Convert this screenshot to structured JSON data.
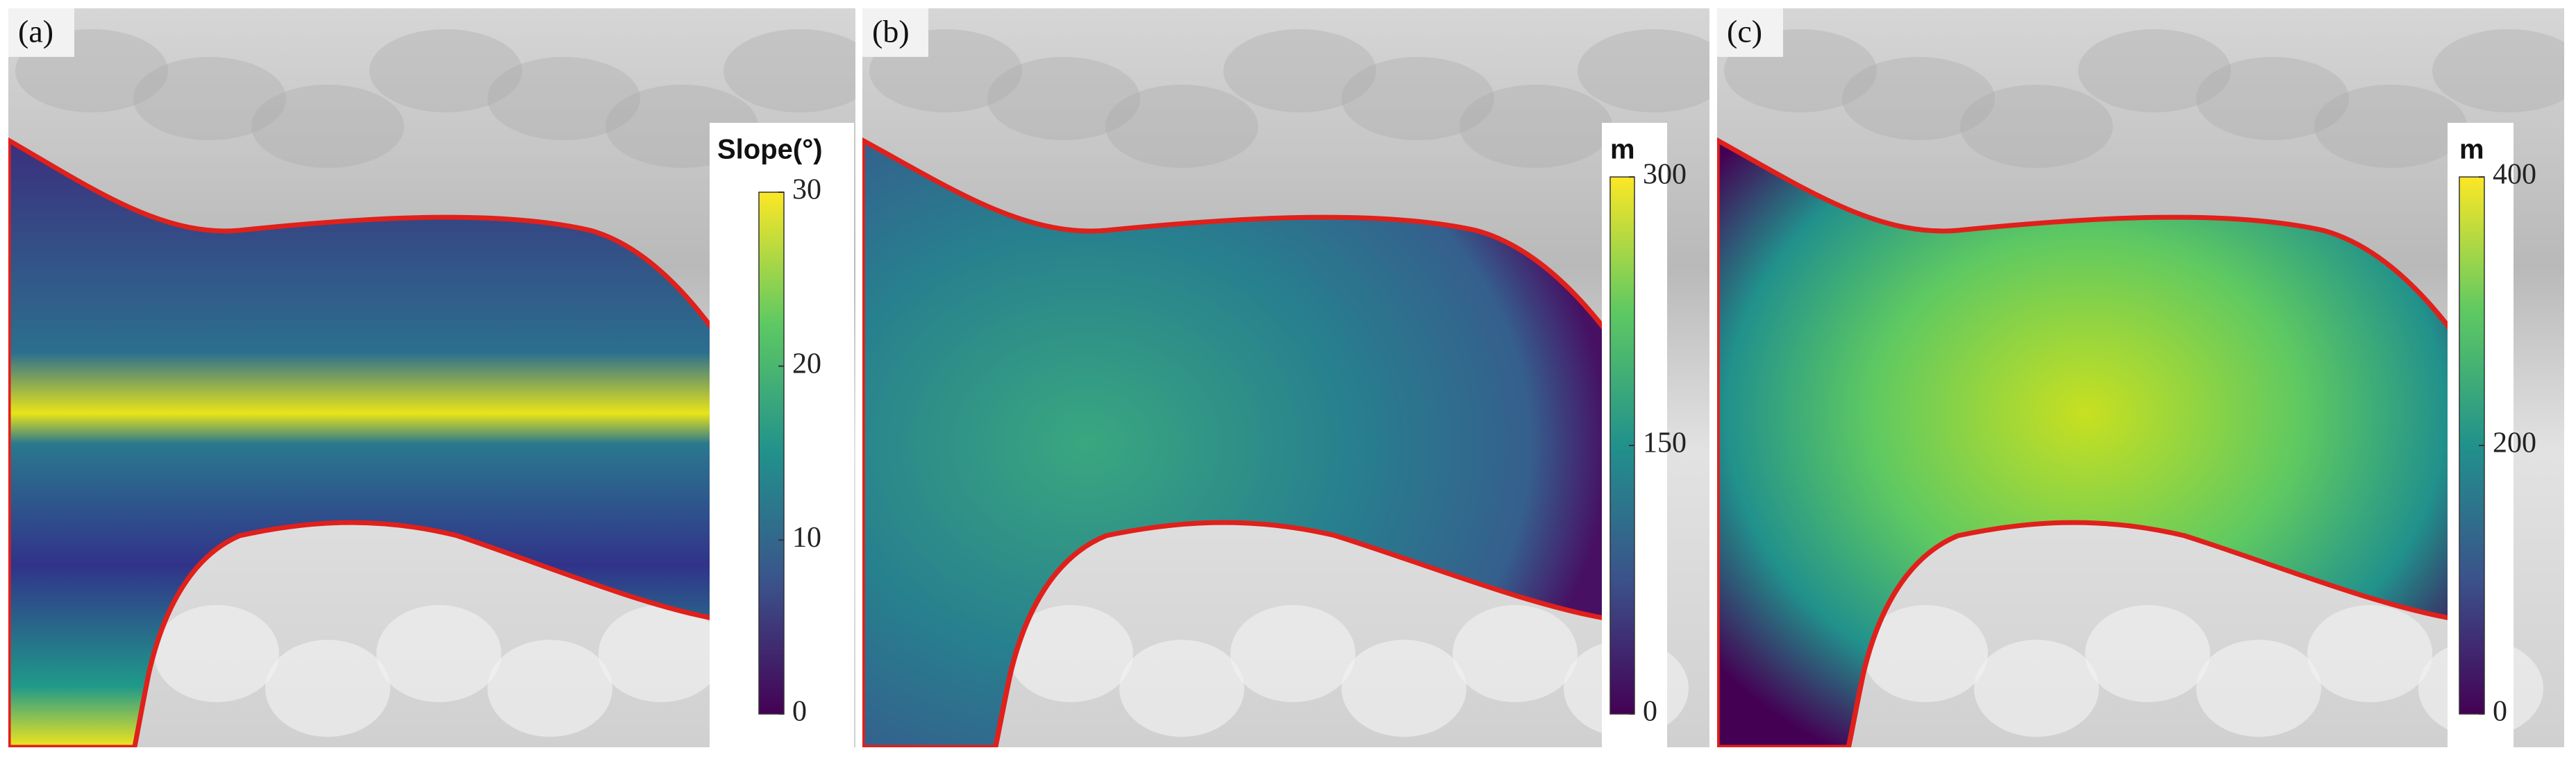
{
  "panels": [
    {
      "label": "(a)",
      "colorbar": {
        "title": "Slope(°)",
        "range": [
          0,
          30
        ],
        "ticks": [
          0,
          10,
          20,
          30
        ]
      }
    },
    {
      "label": "(b)",
      "colorbar": {
        "title": "m",
        "range": [
          0,
          300
        ],
        "ticks": [
          0,
          150,
          300
        ]
      }
    },
    {
      "label": "(c)",
      "colorbar": {
        "title": "m",
        "range": [
          0,
          400
        ],
        "ticks": [
          0,
          200,
          400
        ]
      }
    }
  ]
}
